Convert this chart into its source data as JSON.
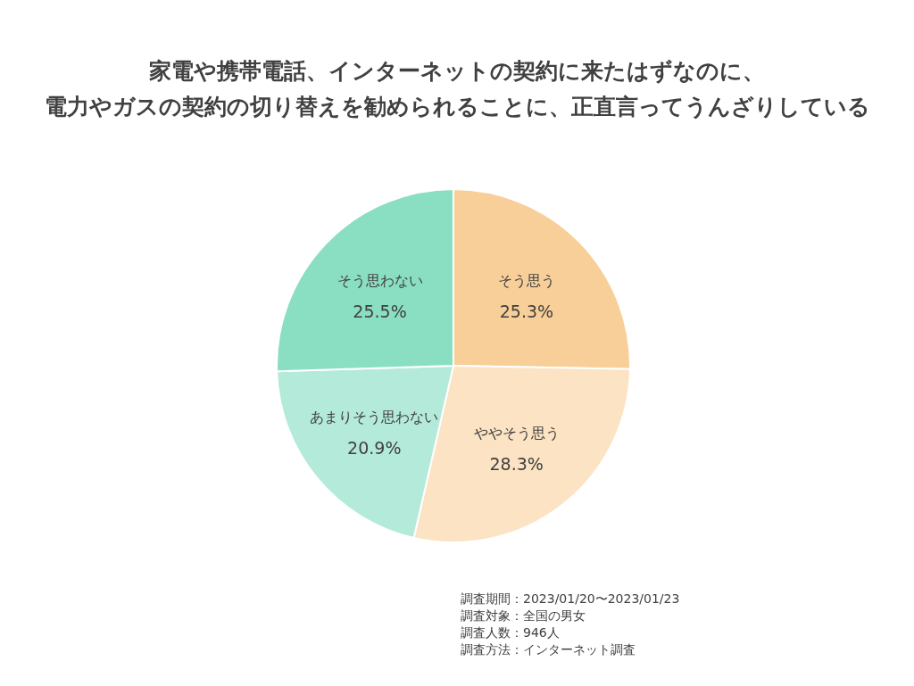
{
  "chart_data": {
    "type": "pie",
    "title": "家電や携帯電話、インターネットの契約に来たはずなのに、",
    "subtitle": "電力やガスの契約の切り替えを勧められることに、正直言ってうんざりしている",
    "categories": [
      "そう思う",
      "ややそう思う",
      "あまりそう思わない",
      "そう思わない"
    ],
    "values": [
      25.3,
      28.3,
      20.9,
      25.5
    ],
    "value_labels": [
      "25.3%",
      "28.3%",
      "20.9%",
      "25.5%"
    ],
    "colors": [
      "#f8cf98",
      "#fbe3c3",
      "#b4ead9",
      "#8adfc3"
    ],
    "legend": false,
    "annotations": [
      "調査期間：2023/01/20〜2023/01/23",
      "調査対象：全国の男女",
      "調査人数：946人",
      "調査方法：インターネット調査"
    ]
  }
}
